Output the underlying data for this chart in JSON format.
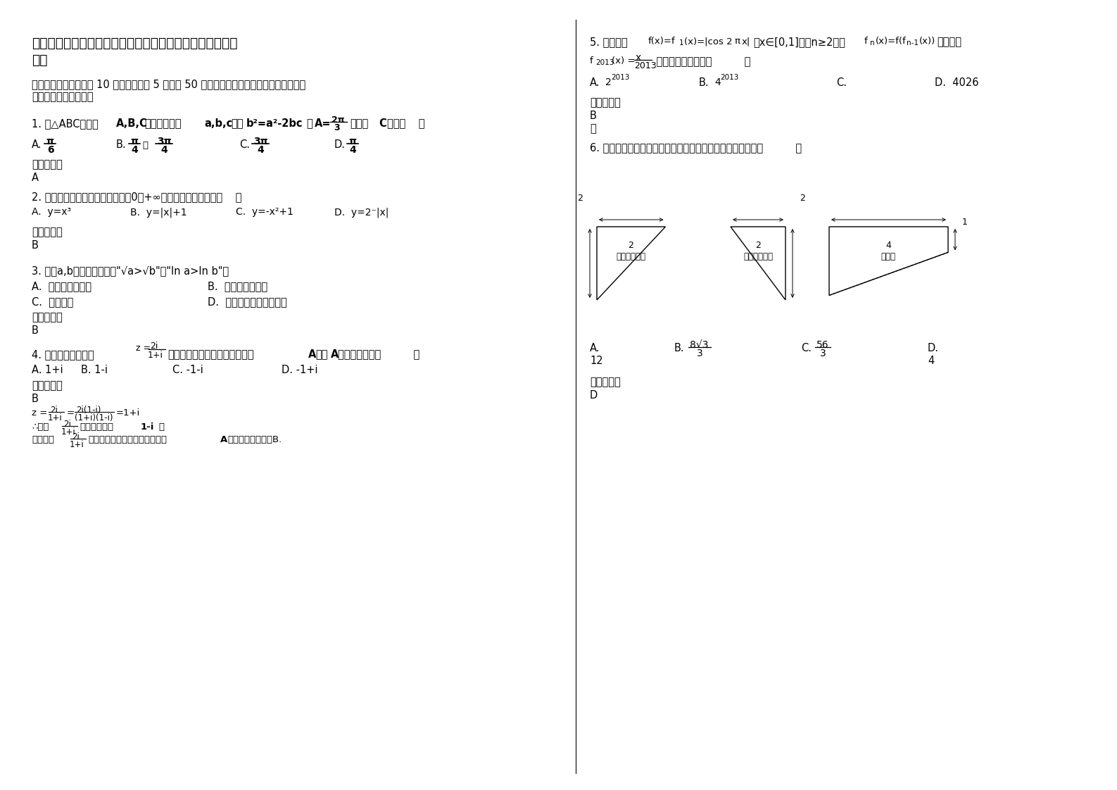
{
  "title_line1": "四川省凉山市西昌礼州中学校高三数学理上学期期末试卷含",
  "title_line2": "解析",
  "section1": "一、选择题：本大题共 10 小题，每小题 5 分，共 50 分。在每小题给出的四个选项中，只有",
  "section1b": "是一个符合题目要求的",
  "q1_text": "1. 在△ABC中，角A,B,C的对边分别为a,b,c，且b²=a²-2bc，  A=2π/3，则角C等于（    ）",
  "q2_text": "2. 下列函数中，既是偶函数又在（0，+∞）单调递增的函数是（    ）",
  "q2_A": "A.  y=x³",
  "q2_B": "B.  y=|x|+1",
  "q2_C": "C.  y=-x²+1",
  "q2_D": "D.  y=2^(-|x|)",
  "q3_text": "3. 已知a,b都是实数，那么\"√a>√b\"是\"ln a>ln b\"的",
  "q3_A": "A.  充分不必要条件",
  "q3_B": "B.  必要不充分条件",
  "q3_C": "C.  充要条件",
  "q3_D": "D.  既不充分也不必要条件",
  "q4_text": "4. 在复平面内与复数",
  "q4_rest": "所对应的点关于实轴对称的点为A，则A对应的复数为（          ）",
  "q4_A": "A. 1+i",
  "q4_B": "B. 1-i",
  "q4_C": "C. -1-i",
  "q4_D": "D. -1+i",
  "ans1": "A",
  "ans2": "B",
  "ans3": "B",
  "ans4": "B",
  "ans5": "B",
  "ans6": "D",
  "q5_text": "5. 已知函数",
  "q5_func": "f(x)=f1(x)=|cos 2πx|",
  "q5_domain": "，x∈[0,1]，当n≥2时，",
  "q5_recur": "fn(x)=f(fn-1(x))",
  "q5_tail": "，则方程",
  "q5_D": "D.  4026",
  "q6_text": "6. 一个几何体的三视图如图所示，则这个几何体的体积等于（          ）",
  "bg_color": "#ffffff",
  "text_color": "#000000"
}
